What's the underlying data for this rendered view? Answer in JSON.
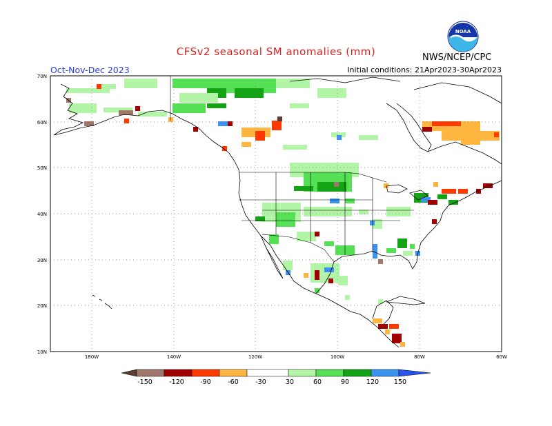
{
  "header": {
    "title": "CFSv2 seasonal SM anomalies (mm)",
    "period": "Oct-Nov-Dec 2023",
    "initial_conditions": "Initial conditions: 21Apr2023-30Apr2023",
    "agency": "NWS/NCEP/CPC",
    "logo_text": "NOAA"
  },
  "map": {
    "lat_labels": [
      "70N",
      "60N",
      "50N",
      "40N",
      "30N",
      "20N",
      "10N"
    ],
    "lon_labels": [
      "180W",
      "140W",
      "120W",
      "100W",
      "80W",
      "60W"
    ],
    "lat_range": [
      10,
      70
    ],
    "lon_range": [
      -170,
      -60
    ],
    "grid": "dotted"
  },
  "colorbar": {
    "labels": [
      "-150",
      "-120",
      "-90",
      "-60",
      "-30",
      "30",
      "60",
      "90",
      "120",
      "150"
    ],
    "colors": {
      "lt_-150": "#5a3c33",
      "-150_-120": "#a1776b",
      "-120_-90": "#a00000",
      "-90_-60": "#ff3a00",
      "-60_-30": "#ffb641",
      "neutral": "#ffffff",
      "30_60": "#b2f5a6",
      "60_90": "#55e055",
      "90_120": "#14a314",
      "120_150": "#3b93f0",
      "gt_150": "#2a52ee"
    }
  }
}
